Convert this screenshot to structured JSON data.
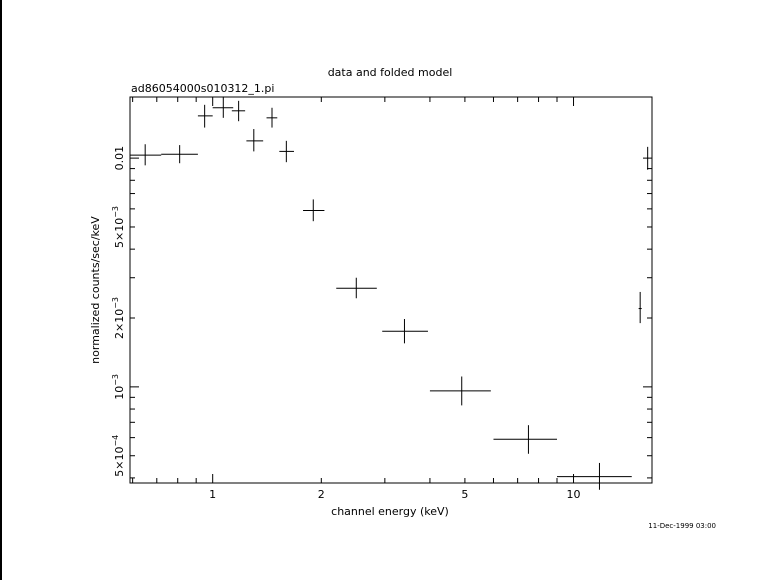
{
  "chart_data": {
    "type": "scatter",
    "title": "data and folded model",
    "subtitle": "ad86054000s010312_1.pi",
    "xlabel": "channel energy (keV)",
    "ylabel": "normalized counts/sec/keV",
    "timestamp": "11-Dec-1999 03:00",
    "x_scale": "log",
    "y_scale": "log",
    "xlim": [
      0.59,
      16.5
    ],
    "ylim": [
      0.00038,
      0.0185
    ],
    "x_tick_labels": [
      {
        "value": 1,
        "label": "1"
      },
      {
        "value": 2,
        "label": "2"
      },
      {
        "value": 5,
        "label": "5"
      },
      {
        "value": 10,
        "label": "10"
      }
    ],
    "y_tick_labels": [
      {
        "value": 0.01,
        "label": "0.01"
      },
      {
        "value": 0.005,
        "label": "5×10",
        "exp": "−3"
      },
      {
        "value": 0.002,
        "label": "2×10",
        "exp": "−3"
      },
      {
        "value": 0.001,
        "label": "10",
        "exp": "−3"
      },
      {
        "value": 0.0005,
        "label": "5×10",
        "exp": "−4"
      }
    ],
    "points": [
      {
        "x": 0.65,
        "xlo": 0.59,
        "xhi": 0.72,
        "y": 0.0103,
        "ylo": 0.0093,
        "yhi": 0.0115
      },
      {
        "x": 0.81,
        "xlo": 0.72,
        "xhi": 0.91,
        "y": 0.0104,
        "ylo": 0.0095,
        "yhi": 0.0114
      },
      {
        "x": 0.95,
        "xlo": 0.91,
        "xhi": 1.0,
        "y": 0.0153,
        "ylo": 0.0136,
        "yhi": 0.0171
      },
      {
        "x": 1.07,
        "xlo": 1.0,
        "xhi": 1.14,
        "y": 0.0166,
        "ylo": 0.015,
        "yhi": 0.0186
      },
      {
        "x": 1.18,
        "xlo": 1.13,
        "xhi": 1.23,
        "y": 0.0161,
        "ylo": 0.0145,
        "yhi": 0.0178
      },
      {
        "x": 1.3,
        "xlo": 1.24,
        "xhi": 1.38,
        "y": 0.0119,
        "ylo": 0.0107,
        "yhi": 0.0134
      },
      {
        "x": 1.46,
        "xlo": 1.41,
        "xhi": 1.51,
        "y": 0.015,
        "ylo": 0.0136,
        "yhi": 0.0166
      },
      {
        "x": 1.6,
        "xlo": 1.53,
        "xhi": 1.68,
        "y": 0.0107,
        "ylo": 0.0096,
        "yhi": 0.0119
      },
      {
        "x": 1.9,
        "xlo": 1.78,
        "xhi": 2.04,
        "y": 0.0059,
        "ylo": 0.0053,
        "yhi": 0.0066
      },
      {
        "x": 2.5,
        "xlo": 2.2,
        "xhi": 2.85,
        "y": 0.0027,
        "ylo": 0.00244,
        "yhi": 0.003
      },
      {
        "x": 3.4,
        "xlo": 2.95,
        "xhi": 3.95,
        "y": 0.00175,
        "ylo": 0.00155,
        "yhi": 0.00198
      },
      {
        "x": 4.9,
        "xlo": 4.0,
        "xhi": 5.9,
        "y": 0.00096,
        "ylo": 0.00083,
        "yhi": 0.00111
      },
      {
        "x": 7.5,
        "xlo": 6.0,
        "xhi": 9.0,
        "y": 0.00059,
        "ylo": 0.00051,
        "yhi": 0.00068
      },
      {
        "x": 11.8,
        "xlo": 9.0,
        "xhi": 14.5,
        "y": 0.000405,
        "ylo": 0.000355,
        "yhi": 0.000465
      },
      {
        "x": 15.3,
        "xlo": 15.15,
        "xhi": 15.45,
        "y": 0.0022,
        "ylo": 0.0019,
        "yhi": 0.0026
      },
      {
        "x": 16.05,
        "xlo": 15.98,
        "xhi": 16.12,
        "y": 0.01,
        "ylo": 0.0089,
        "yhi": 0.0112
      }
    ]
  }
}
